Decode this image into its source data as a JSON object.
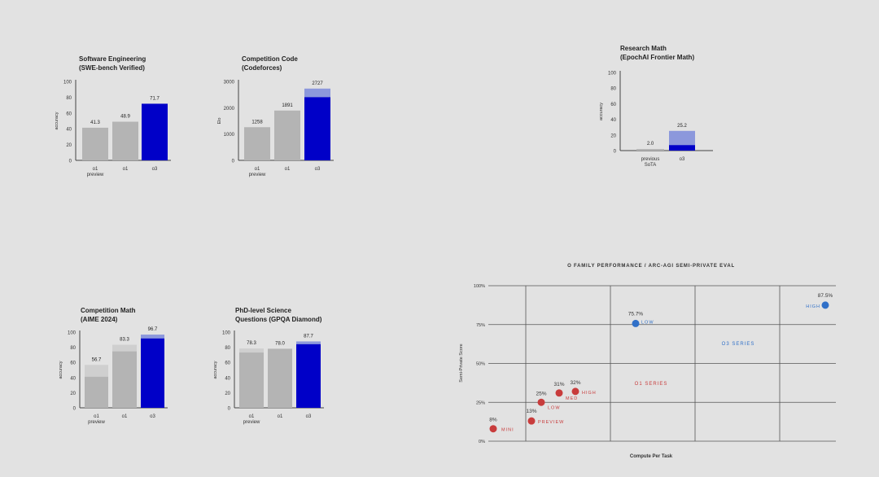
{
  "colors": {
    "o3_solid": "#0000c8",
    "o3_light": "#8c98dc",
    "gray_solid": "#b4b4b4",
    "gray_light": "#cfcfcf",
    "o1_series": "#c83c3c",
    "o3_series": "#3070c8",
    "grid": "#555555"
  },
  "chart_data": [
    {
      "type": "bar",
      "title_line1": "Software Engineering",
      "title_line2": "(SWE-bench Verified)",
      "ylabel": "accuracy",
      "ylim": [
        0,
        100
      ],
      "yticks": [
        "0",
        "20",
        "40",
        "60",
        "80",
        "100"
      ],
      "categories": [
        "o1\npreview",
        "o1",
        "o3"
      ],
      "values": [
        41.3,
        48.9,
        71.7
      ],
      "base_values": [
        41.3,
        48.9,
        71.7
      ],
      "labels": [
        "41.3",
        "48.9",
        "71.7"
      ]
    },
    {
      "type": "bar",
      "title_line1": "Competition Code",
      "title_line2": "(Codeforces)",
      "ylabel": "Elo",
      "ylim": [
        0,
        3000
      ],
      "yticks": [
        "0",
        "1000",
        "2000",
        "3000"
      ],
      "categories": [
        "o1\npreview",
        "o1",
        "o3"
      ],
      "values": [
        1258,
        1891,
        2727
      ],
      "base_values": [
        1258,
        1891,
        2400
      ],
      "labels": [
        "1258",
        "1891",
        "2727"
      ]
    },
    {
      "type": "bar",
      "title_line1": "Research Math",
      "title_line2": "(EpochAI Frontier Math)",
      "ylabel": "accuracy",
      "ylim": [
        0,
        100
      ],
      "yticks": [
        "0",
        "20",
        "40",
        "60",
        "80",
        "100"
      ],
      "categories": [
        "previous\nSoTA",
        "o3"
      ],
      "values": [
        2.0,
        25.2
      ],
      "base_values": [
        2.0,
        7.0
      ],
      "labels": [
        "2.0",
        "25.2"
      ]
    },
    {
      "type": "bar",
      "title_line1": "Competition Math",
      "title_line2": "(AIME 2024)",
      "ylabel": "accuracy",
      "ylim": [
        0,
        100
      ],
      "yticks": [
        "0",
        "20",
        "40",
        "60",
        "80",
        "100"
      ],
      "categories": [
        "o1\npreview",
        "o1",
        "o3"
      ],
      "values": [
        56.7,
        83.3,
        96.7
      ],
      "base_values": [
        41,
        74.5,
        91.6
      ],
      "labels": [
        "56.7",
        "83.3",
        "96.7"
      ]
    },
    {
      "type": "bar",
      "title_line1": "PhD-level Science",
      "title_line2": "Questions (GPQA Diamond)",
      "ylabel": "accuracy",
      "ylim": [
        0,
        100
      ],
      "yticks": [
        "0",
        "20",
        "40",
        "60",
        "80",
        "100"
      ],
      "categories": [
        "o1\npreview",
        "o1",
        "o3"
      ],
      "values": [
        78.3,
        78.0,
        87.7
      ],
      "base_values": [
        73,
        78.0,
        84
      ],
      "labels": [
        "78.3",
        "78.0",
        "87.7"
      ]
    },
    {
      "type": "scatter",
      "title": "O FAMILY PERFORMANCE / ARC-AGI SEMI-PRIVATE EVAL",
      "xlabel": "Compute Per Task",
      "ylabel": "Semi-Private Score",
      "ylim": [
        0,
        100
      ],
      "yticks": [
        "0%",
        "25%",
        "50%",
        "75%",
        "100%"
      ],
      "grid": true,
      "series": [
        {
          "name": "O1 SERIES",
          "points": [
            {
              "label": "MINI",
              "y": 8,
              "value_label": "8%"
            },
            {
              "label": "PREVIEW",
              "y": 13,
              "value_label": "13%"
            },
            {
              "label": "LOW",
              "y": 25,
              "value_label": "25%"
            },
            {
              "label": "MED",
              "y": 31,
              "value_label": "31%"
            },
            {
              "label": "HIGH",
              "y": 32,
              "value_label": "32%"
            }
          ]
        },
        {
          "name": "O3 SERIES",
          "points": [
            {
              "label": "LOW",
              "y": 75.7,
              "value_label": "75.7%"
            },
            {
              "label": "HIGH",
              "y": 87.5,
              "value_label": "87.5%"
            }
          ]
        }
      ]
    }
  ]
}
